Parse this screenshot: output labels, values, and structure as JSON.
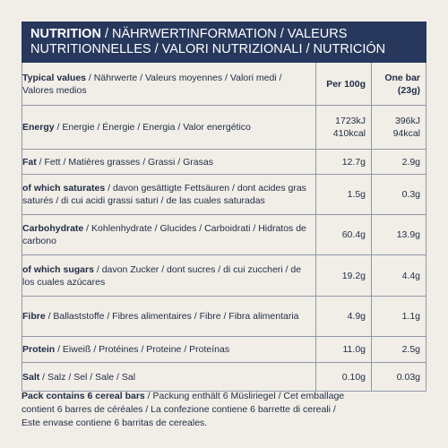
{
  "header": {
    "title_bold": "NUTRITION",
    "title_rest": " / NÄHRWERTINFORMATION / VALEURS NUTRITIONNELLES / VALORI NUTRIZIONALI / NUTRICIÓN"
  },
  "table": {
    "head": {
      "label_bold": "Typical values",
      "label_rest": " / Nährwerte / Valeurs moyennes / Valori medi / Valores medios",
      "per100g": [
        "Per 100g"
      ],
      "one_bar": [
        "One bar",
        "(23g)"
      ]
    },
    "rows": [
      {
        "label_bold": "Energy",
        "label_rest": " / Energie / Énergie / Energia / Valor energético",
        "per100g": [
          "1723kJ",
          "410kcal"
        ],
        "one_bar": [
          "396kJ",
          "94kcal"
        ]
      },
      {
        "label_bold": "Fat",
        "label_rest": " / Fett / Matières grasses / Grassi / Grasas",
        "per100g": [
          "12.7g"
        ],
        "one_bar": [
          "2.9g"
        ]
      },
      {
        "label_bold": "of which saturates",
        "label_rest": " / davon gesättigte Fettsäuren / dont acides gras saturés / di cui acidi grassi saturi / de las cuales saturadas",
        "per100g": [
          "1.5g"
        ],
        "one_bar": [
          "0.3g"
        ]
      },
      {
        "label_bold": "Carbohydrate",
        "label_rest": " / Kohlenhydrate / Glucides / Carboidrati / Hidratos de carbono",
        "per100g": [
          "60.4g"
        ],
        "one_bar": [
          "13.9g"
        ]
      },
      {
        "label_bold": "of which sugars",
        "label_rest": " / davon Zucker / dont sucres / di cui zuccheri / de los cuales azúcares",
        "per100g": [
          "19.2g"
        ],
        "one_bar": [
          "4.4g"
        ]
      },
      {
        "label_bold": "Fibre",
        "label_rest": " / Ballaststoffe / Fibres alimentaires / Fibre / Fibra alimentaria",
        "per100g": [
          "4.9g"
        ],
        "one_bar": [
          "1.1g"
        ]
      },
      {
        "label_bold": "Protein",
        "label_rest": " / Eiweiß / Protéines / Proteine / Proteínas",
        "per100g": [
          "11.0g"
        ],
        "one_bar": [
          "2.5g"
        ]
      },
      {
        "label_bold": "Salt",
        "label_rest": " / Salz / Sel / Sale / Sal",
        "per100g": [
          "0.10g"
        ],
        "one_bar": [
          "0.03g"
        ]
      }
    ]
  },
  "footer": {
    "text_bold": "Pack contains 6 cereal bars",
    "text_rest": " / Packung enthält 6 Müsliriegel / Cet emballage contient 6 barres de céréales / La confezione contiene 6 barrette di cereali / Este envase contiene 6 barritas de cereales."
  }
}
